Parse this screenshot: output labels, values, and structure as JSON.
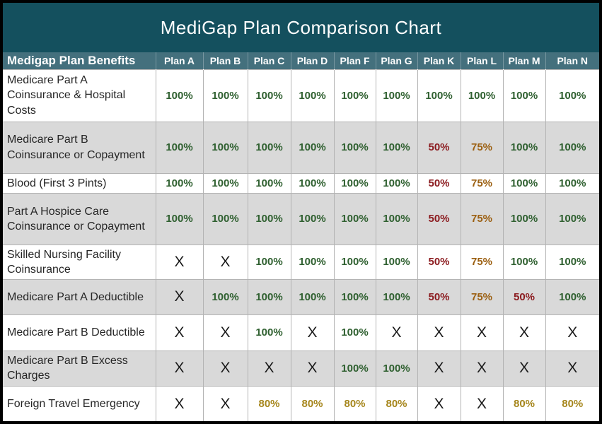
{
  "title": "MediGap Plan Comparison Chart",
  "colors": {
    "frame": "#000000",
    "title_bar_bg": "#14505e",
    "header_row_bg": "#44707d",
    "header_text": "#ffffff",
    "row_bg": "#ffffff",
    "row_alt_bg": "#d9d9d9",
    "grid_line": "#b3b3b3",
    "benefit_text": "#262626",
    "covered_100": "#2f6030",
    "covered_50": "#8b1a1e",
    "covered_75": "#9c6012",
    "covered_80": "#a6861c",
    "not_covered_x": "#1b1b1b",
    "value_classes": {
      "100%": "green",
      "50%": "red",
      "75%": "orange",
      "80%": "gold",
      "X": "x"
    }
  },
  "chart_data": {
    "type": "table",
    "title": "MediGap Plan Comparison Chart",
    "columns": [
      "Medigap Plan Benefits",
      "Plan A",
      "Plan B",
      "Plan C",
      "Plan D",
      "Plan F",
      "Plan G",
      "Plan K",
      "Plan L",
      "Plan M",
      "Plan N"
    ],
    "rows": [
      {
        "benefit": "Medicare Part A Coinsurance & Hospital Costs",
        "values": [
          "100%",
          "100%",
          "100%",
          "100%",
          "100%",
          "100%",
          "100%",
          "100%",
          "100%",
          "100%"
        ]
      },
      {
        "benefit": "Medicare Part B Coinsurance or Copayment",
        "values": [
          "100%",
          "100%",
          "100%",
          "100%",
          "100%",
          "100%",
          "50%",
          "75%",
          "100%",
          "100%"
        ]
      },
      {
        "benefit": "Blood (First 3 Pints)",
        "values": [
          "100%",
          "100%",
          "100%",
          "100%",
          "100%",
          "100%",
          "50%",
          "75%",
          "100%",
          "100%"
        ]
      },
      {
        "benefit": "Part A Hospice Care Coinsurance or Copayment",
        "values": [
          "100%",
          "100%",
          "100%",
          "100%",
          "100%",
          "100%",
          "50%",
          "75%",
          "100%",
          "100%"
        ]
      },
      {
        "benefit": "Skilled Nursing Facility Coinsurance",
        "values": [
          "X",
          "X",
          "100%",
          "100%",
          "100%",
          "100%",
          "50%",
          "75%",
          "100%",
          "100%"
        ]
      },
      {
        "benefit": "Medicare Part A Deductible",
        "values": [
          "X",
          "100%",
          "100%",
          "100%",
          "100%",
          "100%",
          "50%",
          "75%",
          "50%",
          "100%"
        ]
      },
      {
        "benefit": "Medicare Part B Deductible",
        "values": [
          "X",
          "X",
          "100%",
          "X",
          "100%",
          "X",
          "X",
          "X",
          "X",
          "X"
        ]
      },
      {
        "benefit": "Medicare Part B Excess Charges",
        "values": [
          "X",
          "X",
          "X",
          "X",
          "100%",
          "100%",
          "X",
          "X",
          "X",
          "X"
        ]
      },
      {
        "benefit": "Foreign Travel Emergency",
        "values": [
          "X",
          "X",
          "80%",
          "80%",
          "80%",
          "80%",
          "X",
          "X",
          "80%",
          "80%"
        ]
      }
    ]
  }
}
